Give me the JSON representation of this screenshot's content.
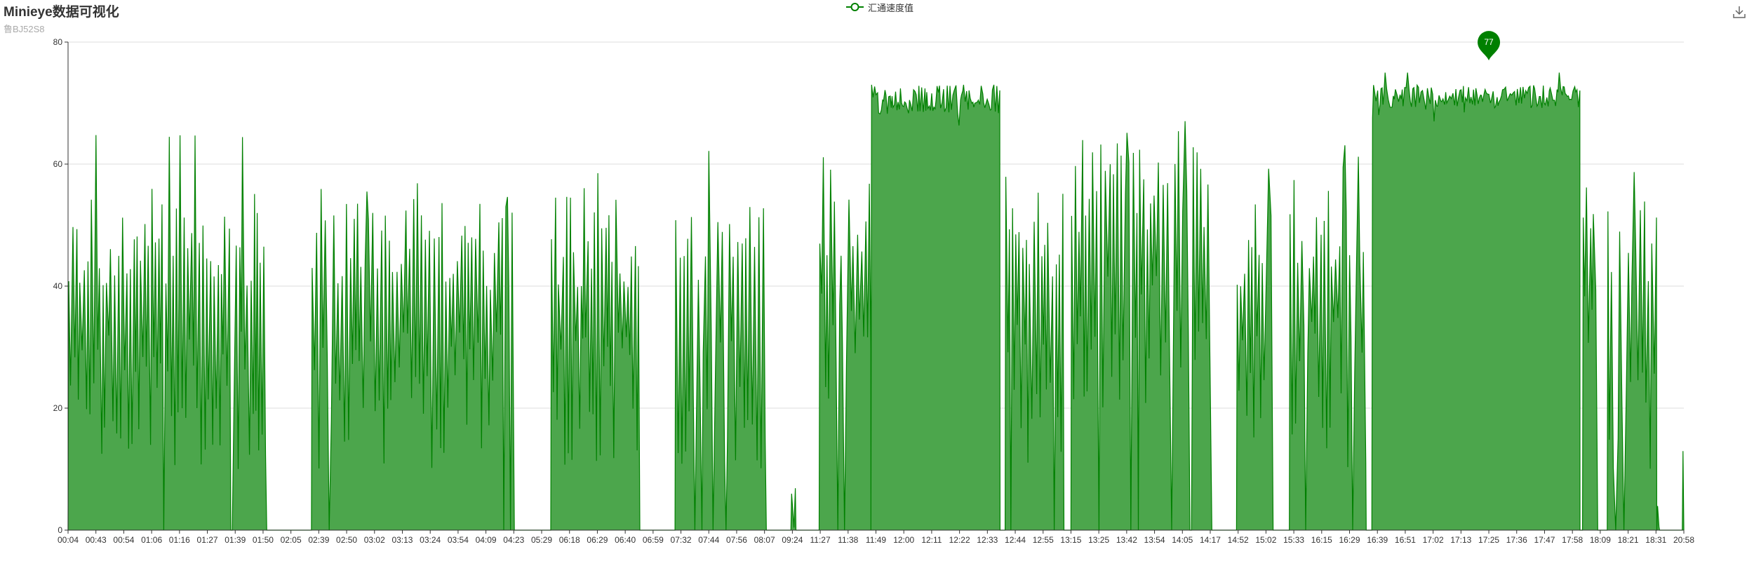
{
  "title": "Minieye数据可视化",
  "subtitle": "鲁BJ52S8",
  "toolbox": {
    "icon": "download-icon"
  },
  "colors": {
    "line": "#008000",
    "area": "#4CA64C",
    "grid": "#dddddd",
    "axis": "#333333",
    "marker": "#008000"
  },
  "chart_data": {
    "type": "area",
    "legend": "汇通速度值",
    "legend_position": "top-center",
    "grid": true,
    "ylim": [
      0,
      80
    ],
    "yticks": [
      0,
      20,
      40,
      60,
      80
    ],
    "x_tick_labels": [
      "00:04",
      "00:43",
      "00:54",
      "01:06",
      "01:16",
      "01:27",
      "01:39",
      "01:50",
      "02:05",
      "02:39",
      "02:50",
      "03:02",
      "03:13",
      "03:24",
      "03:54",
      "04:09",
      "04:23",
      "05:29",
      "06:18",
      "06:29",
      "06:40",
      "06:59",
      "07:32",
      "07:44",
      "07:56",
      "08:07",
      "09:24",
      "11:27",
      "11:38",
      "11:49",
      "12:00",
      "12:11",
      "12:22",
      "12:33",
      "12:44",
      "12:55",
      "13:15",
      "13:25",
      "13:42",
      "13:54",
      "14:05",
      "14:17",
      "14:52",
      "15:02",
      "15:33",
      "16:15",
      "16:29",
      "16:39",
      "16:51",
      "17:02",
      "17:13",
      "17:25",
      "17:36",
      "17:47",
      "17:58",
      "18:09",
      "18:21",
      "18:31",
      "20:58"
    ],
    "max_marker": {
      "label": "77",
      "value": 77,
      "at_time": "17:25"
    },
    "segments": [
      {
        "start": "00:04",
        "end": "01:52",
        "level": "high",
        "peak": 65,
        "typical": [
          10,
          56
        ]
      },
      {
        "start": "02:30",
        "end": "04:27",
        "level": "high",
        "peak": 57,
        "typical": [
          10,
          55
        ]
      },
      {
        "start": "05:45",
        "end": "06:50",
        "level": "high",
        "peak": 59,
        "typical": [
          10,
          55
        ]
      },
      {
        "start": "07:25",
        "end": "08:12",
        "level": "high",
        "peak": 65,
        "typical": [
          10,
          55
        ]
      },
      {
        "start": "09:20",
        "end": "09:40",
        "level": "low",
        "peak": 10,
        "typical": [
          0,
          8
        ]
      },
      {
        "start": "11:22",
        "end": "11:47",
        "level": "high",
        "peak": 62,
        "typical": [
          20,
          58
        ]
      },
      {
        "start": "11:47",
        "end": "12:38",
        "level": "cruise",
        "peak": 75,
        "typical": [
          64,
          73
        ]
      },
      {
        "start": "12:40",
        "end": "13:10",
        "level": "high",
        "peak": 61,
        "typical": [
          10,
          58
        ]
      },
      {
        "start": "13:15",
        "end": "14:19",
        "level": "high",
        "peak": 68,
        "typical": [
          20,
          64
        ]
      },
      {
        "start": "14:50",
        "end": "15:10",
        "level": "high",
        "peak": 60,
        "typical": [
          10,
          55
        ]
      },
      {
        "start": "15:28",
        "end": "16:35",
        "level": "high",
        "peak": 64,
        "typical": [
          10,
          60
        ]
      },
      {
        "start": "16:37",
        "end": "18:01",
        "level": "cruise",
        "peak": 77,
        "typical": [
          66,
          73
        ]
      },
      {
        "start": "18:02",
        "end": "18:08",
        "level": "high",
        "peak": 57,
        "typical": [
          30,
          55
        ]
      },
      {
        "start": "18:12",
        "end": "18:35",
        "level": "high",
        "peak": 59,
        "typical": [
          10,
          55
        ]
      },
      {
        "start": "18:36",
        "end": "18:50",
        "level": "low",
        "peak": 5,
        "typical": [
          0,
          4
        ]
      },
      {
        "start": "20:50",
        "end": "21:00",
        "level": "low",
        "peak": 14,
        "typical": [
          0,
          14
        ]
      }
    ]
  }
}
